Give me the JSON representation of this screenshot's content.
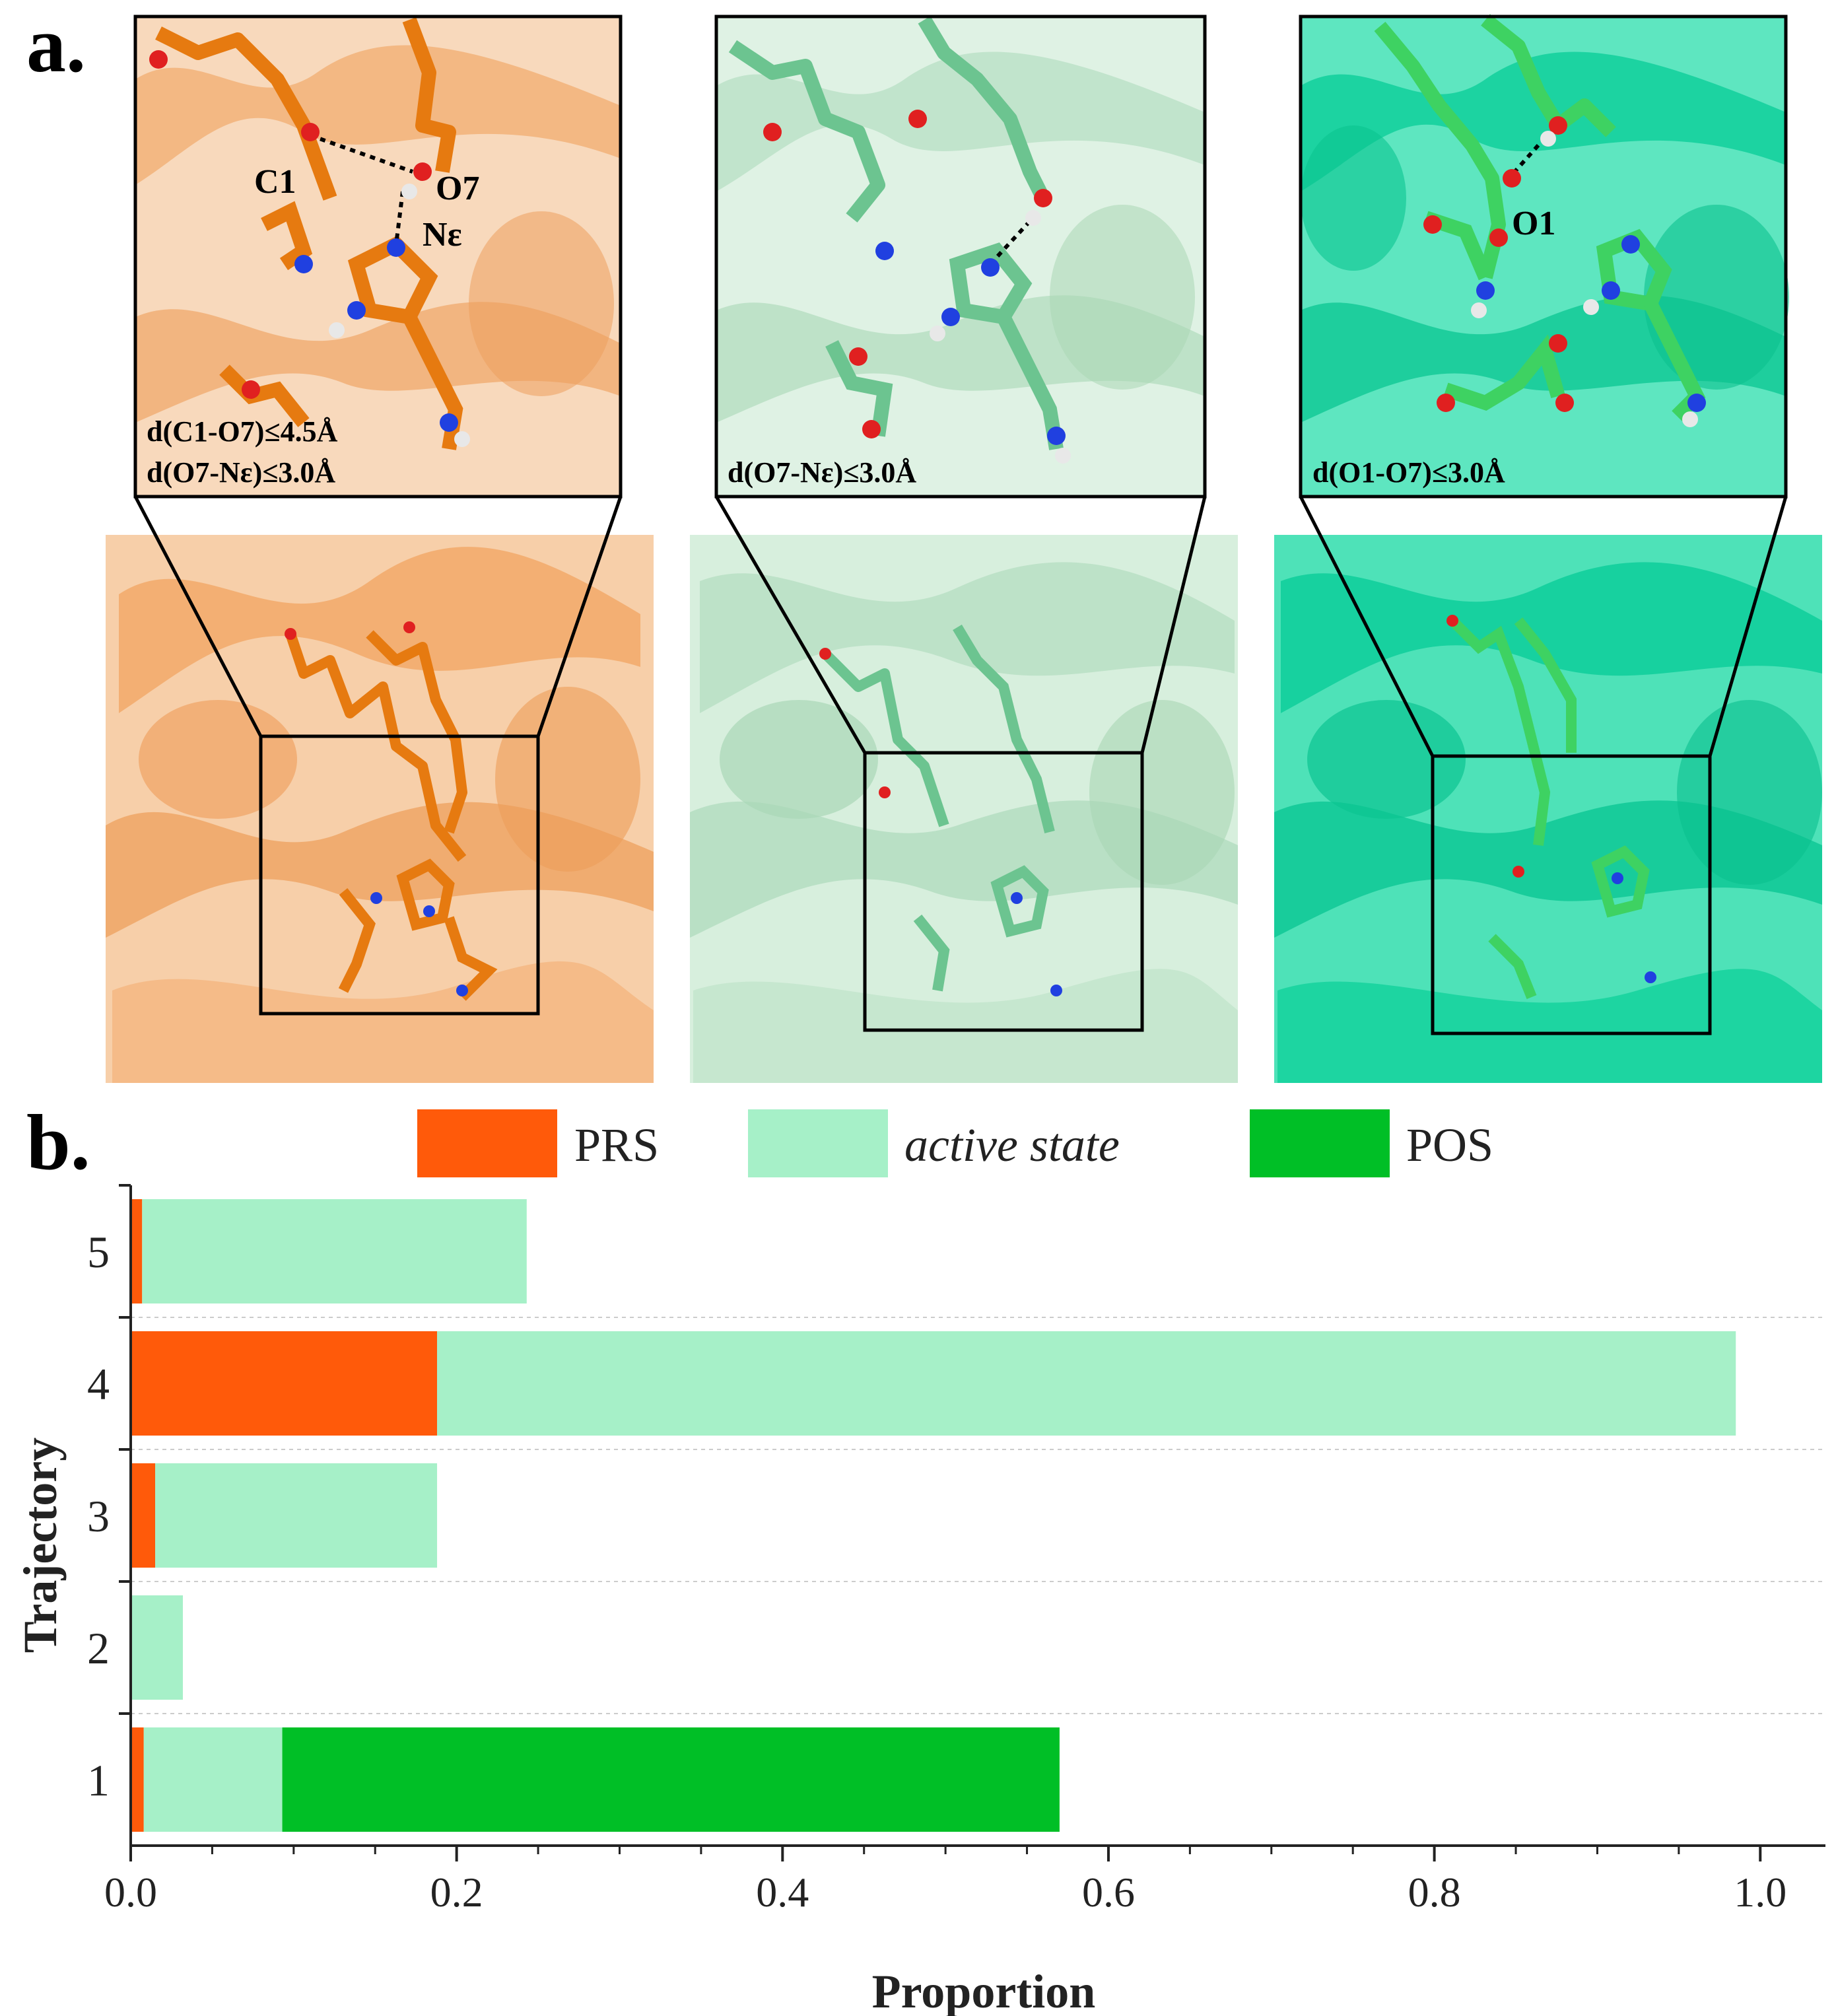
{
  "panel_a": {
    "label": "a.",
    "panels": [
      {
        "theme": "orange",
        "atom_labels": [
          "C1",
          "O7",
          "Nε"
        ],
        "criteria": [
          "d(C1-O7)≤4.5Å",
          "d(O7-Nε)≤3.0Å"
        ]
      },
      {
        "theme": "palegreen",
        "atom_labels": [],
        "criteria": [
          "d(O7-Nε)≤3.0Å"
        ]
      },
      {
        "theme": "teal",
        "atom_labels": [
          "O1"
        ],
        "criteria": [
          "d(O1-O7)≤3.0Å"
        ]
      }
    ],
    "colors": {
      "orange_protein": "#f2b07a",
      "orange_stick": "#e67a10",
      "palegreen_protein": "#b5dcc0",
      "palegreen_stick": "#6cc490",
      "teal_protein": "#20d6a4",
      "teal_stick": "#3ed262",
      "oxygen": "#e02020",
      "nitrogen": "#2040e0",
      "hydrogen": "#e8e8e8"
    }
  },
  "panel_b": {
    "label": "b.",
    "chart_data": {
      "type": "bar",
      "orientation": "horizontal",
      "stacked": true,
      "categories": [
        "1",
        "2",
        "3",
        "4",
        "5"
      ],
      "series": [
        {
          "name": "PRS",
          "color": "#ff5a0a",
          "values": [
            0.008,
            0.0,
            0.015,
            0.188,
            0.007
          ]
        },
        {
          "name": "active state",
          "color": "#a6f0c8",
          "values": [
            0.085,
            0.032,
            0.173,
            0.797,
            0.236
          ]
        },
        {
          "name": "POS",
          "color": "#00bf26",
          "values": [
            0.477,
            0.0,
            0.0,
            0.0,
            0.0
          ]
        }
      ],
      "xlabel": "Proportion",
      "ylabel": "Trajectory",
      "xlim": [
        0,
        1.04
      ],
      "xticks": [
        "0.0",
        "0.2",
        "0.4",
        "0.6",
        "0.8",
        "1.0"
      ],
      "xtick_values": [
        0,
        0.2,
        0.4,
        0.6,
        0.8,
        1.0
      ],
      "legend_position": "top"
    }
  }
}
